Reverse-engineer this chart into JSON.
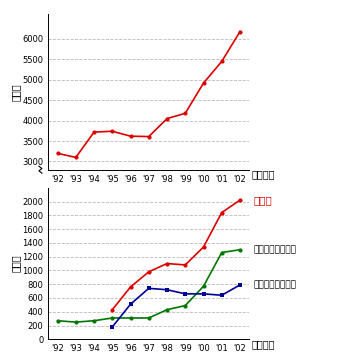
{
  "years": [
    "'92",
    "'93",
    "'94",
    "'95",
    "'96",
    "'97",
    "'98",
    "'99",
    "'00",
    "'01",
    "'02"
  ],
  "top_chart": {
    "ylabel": "（人）",
    "xlabel": "（年度）",
    "red_values": [
      3200,
      3100,
      3720,
      3740,
      3620,
      3610,
      4050,
      4180,
      4920,
      5450,
      6180
    ]
  },
  "bottom_chart": {
    "ylabel": "（人）",
    "xlabel": "（年度）",
    "red_values": [
      null,
      null,
      null,
      430,
      760,
      980,
      1100,
      1080,
      1340,
      1840,
      2020
    ],
    "green_values": [
      270,
      250,
      270,
      310,
      310,
      310,
      430,
      490,
      770,
      1260,
      1300
    ],
    "blue_values": [
      null,
      null,
      null,
      180,
      510,
      740,
      720,
      660,
      660,
      640,
      790
    ],
    "label_red": "全　体",
    "label_green": "精神神経科医担当",
    "label_blue": "カウンセラー担当"
  },
  "red_color": "#dd0000",
  "green_color": "#007700",
  "blue_color": "#000099",
  "grid_color": "#bbbbbb",
  "font_size_label": 7,
  "font_size_tick": 6,
  "font_size_legend": 6.5,
  "top_yticks": [
    3000,
    3500,
    4000,
    4500,
    5000,
    5500,
    6000
  ],
  "bot_yticks": [
    0,
    200,
    400,
    600,
    800,
    1000,
    1200,
    1400,
    1600,
    1800,
    2000
  ]
}
